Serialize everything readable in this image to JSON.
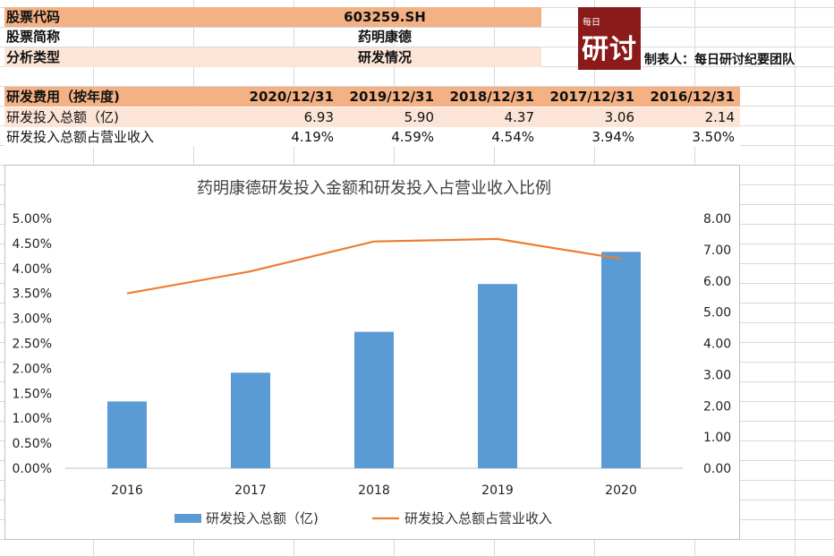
{
  "info": {
    "rows": [
      {
        "label": "股票代码",
        "value": "603259.SH"
      },
      {
        "label": "股票简称",
        "value": "药明康德"
      },
      {
        "label": "分析类型",
        "value": "研发情况"
      }
    ]
  },
  "logo": {
    "small": "每日",
    "big": "研讨"
  },
  "maker": "制表人：每日研讨纪要团队",
  "table": {
    "header": [
      "研发费用（按年度)",
      "2020/12/31",
      "2019/12/31",
      "2018/12/31",
      "2017/12/31",
      "2016/12/31"
    ],
    "rows": [
      {
        "label": "研发投入总额（亿)",
        "values": [
          "6.93",
          "5.90",
          "4.37",
          "3.06",
          "2.14"
        ]
      },
      {
        "label": "研发投入总额占营业收入",
        "values": [
          "4.19%",
          "4.59%",
          "4.54%",
          "3.94%",
          "3.50%"
        ]
      }
    ]
  },
  "colors": {
    "bar": "#5b9bd5",
    "line": "#ed7d31",
    "header_fill": "#f4b183",
    "row_fill": "#fce4d6",
    "logo": "#8b1a1a"
  },
  "chart_data": {
    "type": "bar",
    "title": "药明康德研发投入金额和研发投入占营业收入比例",
    "categories": [
      "2016",
      "2017",
      "2018",
      "2019",
      "2020"
    ],
    "series": [
      {
        "name": "研发投入总额（亿)",
        "type": "bar",
        "axis": "right",
        "values": [
          2.14,
          3.06,
          4.37,
          5.9,
          6.93
        ]
      },
      {
        "name": "研发投入总额占营业收入",
        "type": "line",
        "axis": "left",
        "values": [
          3.5,
          3.94,
          4.54,
          4.59,
          4.19
        ]
      }
    ],
    "y_left": {
      "min": 0,
      "max": 5,
      "step": 0.5,
      "ticks": [
        "0.00%",
        "0.50%",
        "1.00%",
        "1.50%",
        "2.00%",
        "2.50%",
        "3.00%",
        "3.50%",
        "4.00%",
        "4.50%",
        "5.00%"
      ]
    },
    "y_right": {
      "min": 0,
      "max": 8,
      "step": 1,
      "ticks": [
        "0.00",
        "1.00",
        "2.00",
        "3.00",
        "4.00",
        "5.00",
        "6.00",
        "7.00",
        "8.00"
      ]
    },
    "legend": {
      "position": "bottom",
      "items": [
        "研发投入总额（亿)",
        "研发投入总额占营业收入"
      ]
    },
    "grid": false
  }
}
